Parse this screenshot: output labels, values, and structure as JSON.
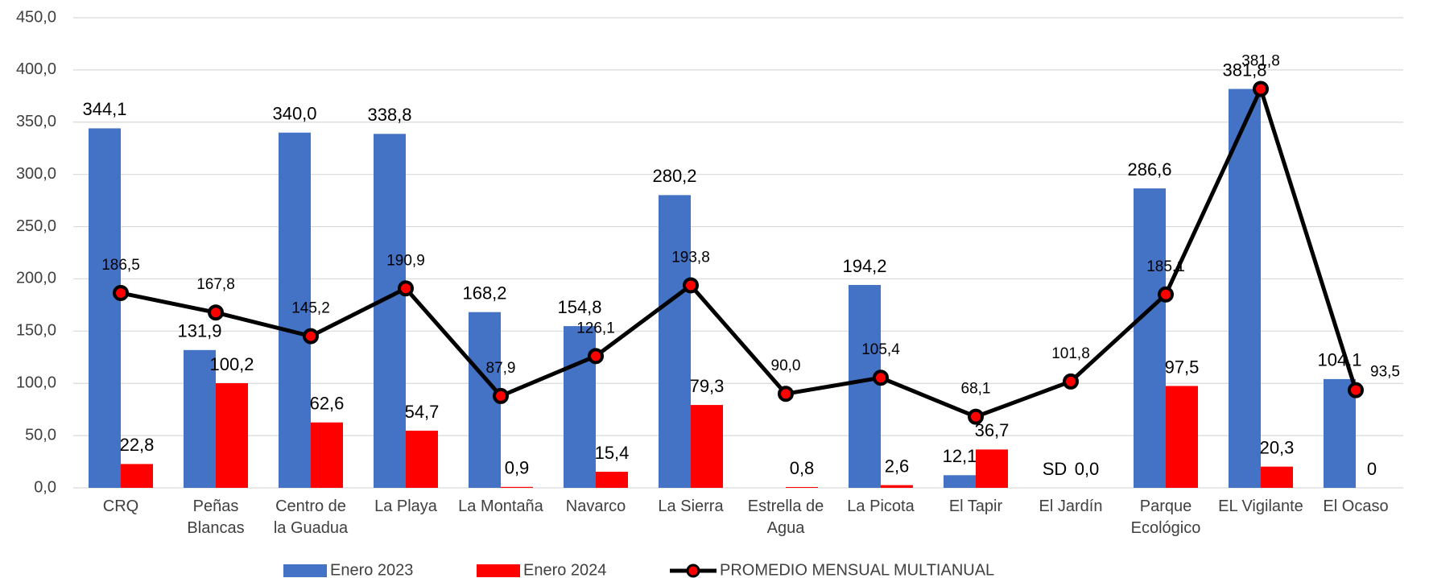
{
  "chart_data": {
    "type": "bar",
    "categories": [
      "CRQ",
      "Peñas\nBlancas",
      "Centro de\nla Guadua",
      "La Playa",
      "La Montaña",
      "Navarco",
      "La Sierra",
      "Estrella de\nAgua",
      "La Picota",
      "El Tapir",
      "El Jardín",
      "Parque\nEcológico",
      "EL Vigilante",
      "El Ocaso"
    ],
    "series": [
      {
        "name": "Enero 2023",
        "color": "#4472c4",
        "values": [
          344.1,
          131.9,
          340.0,
          338.8,
          168.2,
          154.8,
          280.2,
          null,
          194.2,
          12.1,
          null,
          286.6,
          381.8,
          104.1
        ],
        "value_labels": [
          "344,1",
          "131,9",
          "340,0",
          "338,8",
          "168,2",
          "154,8",
          "280,2",
          null,
          "194,2",
          "12,1",
          "SD",
          "286,6",
          "381,8",
          "104,1"
        ]
      },
      {
        "name": "Enero 2024",
        "color": "#ff0000",
        "values": [
          22.8,
          100.2,
          62.6,
          54.7,
          0.9,
          15.4,
          79.3,
          0.8,
          2.6,
          36.7,
          0.0,
          97.5,
          20.3,
          0
        ],
        "value_labels": [
          "22,8",
          "100,2",
          "62,6",
          "54,7",
          "0,9",
          "15,4",
          "79,3",
          "0,8",
          "2,6",
          "36,7",
          "0,0",
          "97,5",
          "20,3",
          "0"
        ]
      },
      {
        "name": "PROMEDIO MENSUAL MULTIANUAL",
        "type": "line",
        "color": "#000000",
        "marker_color": "#ff0000",
        "values": [
          186.5,
          167.8,
          145.2,
          190.9,
          87.9,
          126.1,
          193.8,
          90.0,
          105.4,
          68.1,
          101.8,
          185.1,
          381.8,
          93.5
        ],
        "value_labels": [
          "186,5",
          "167,8",
          "145,2",
          "190,9",
          "87,9",
          "126,1",
          "193,8",
          "90,0",
          "105,4",
          "68,1",
          "101,8",
          "185,1",
          "381,8",
          "93,5"
        ]
      }
    ],
    "ylim": [
      0,
      450
    ],
    "yticks": [
      {
        "value": 0,
        "label": "0,0"
      },
      {
        "value": 50,
        "label": "50,0"
      },
      {
        "value": 100,
        "label": "100,0"
      },
      {
        "value": 150,
        "label": "150,0"
      },
      {
        "value": 200,
        "label": "200,0"
      },
      {
        "value": 250,
        "label": "250,0"
      },
      {
        "value": 300,
        "label": "300,0"
      },
      {
        "value": 350,
        "label": "350,0"
      },
      {
        "value": 400,
        "label": "400,0"
      },
      {
        "value": 450,
        "label": "450,0"
      }
    ],
    "grid": true,
    "legend": "bottom"
  }
}
